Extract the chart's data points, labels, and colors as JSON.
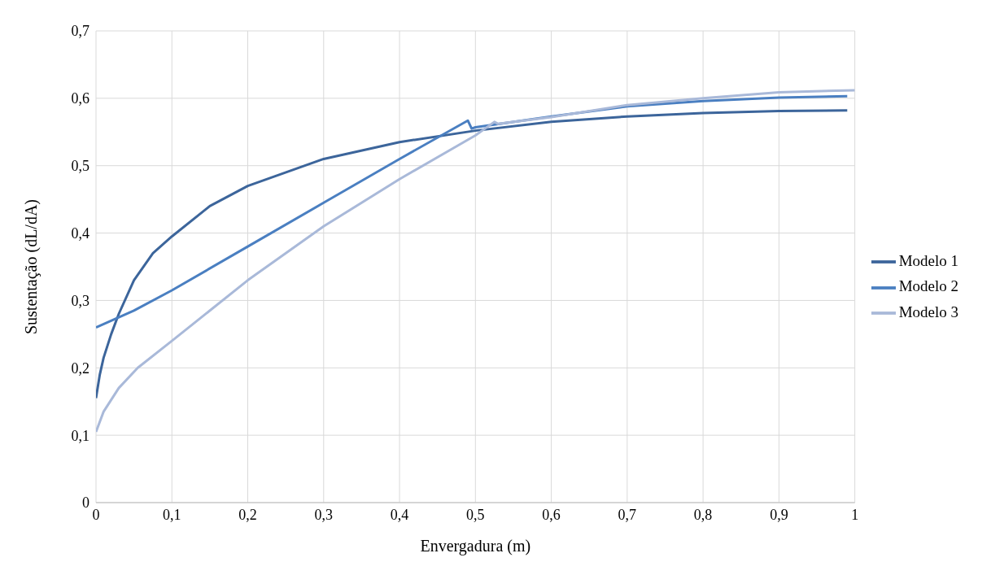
{
  "chart_data": {
    "type": "line",
    "xlabel": "Envergadura (m)",
    "ylabel": "Sustentação (dL/dA)",
    "xlim": [
      0,
      1
    ],
    "ylim": [
      0,
      0.7
    ],
    "xticks": [
      0,
      {
        "value": 0.1,
        "label": "0,1"
      },
      {
        "value": 0.2,
        "label": "0,2"
      },
      {
        "value": 0.3,
        "label": "0,3"
      },
      {
        "value": 0.4,
        "label": "0,4"
      },
      {
        "value": 0.5,
        "label": "0,5"
      },
      {
        "value": 0.6,
        "label": "0,6"
      },
      {
        "value": 0.7,
        "label": "0,7"
      },
      {
        "value": 0.8,
        "label": "0,8"
      },
      {
        "value": 0.9,
        "label": "0,9"
      },
      1
    ],
    "yticks": [
      0,
      {
        "value": 0.1,
        "label": "0,1"
      },
      {
        "value": 0.2,
        "label": "0,2"
      },
      {
        "value": 0.3,
        "label": "0,3"
      },
      {
        "value": 0.4,
        "label": "0,4"
      },
      {
        "value": 0.5,
        "label": "0,5"
      },
      {
        "value": 0.6,
        "label": "0,6"
      },
      {
        "value": 0.7,
        "label": "0,7"
      }
    ],
    "grid": true,
    "legend": "right",
    "marker": "none",
    "line_style": "solid",
    "series": [
      {
        "name": "Modelo 1",
        "color": "#3c659b",
        "x": [
          0,
          0.005,
          0.01,
          0.02,
          0.03,
          0.05,
          0.075,
          0.1,
          0.15,
          0.2,
          0.3,
          0.4,
          0.5,
          0.6,
          0.7,
          0.8,
          0.9,
          0.99
        ],
        "values": [
          0.155,
          0.19,
          0.215,
          0.25,
          0.28,
          0.33,
          0.37,
          0.395,
          0.44,
          0.47,
          0.51,
          0.535,
          0.552,
          0.565,
          0.573,
          0.578,
          0.581,
          0.582
        ]
      },
      {
        "name": "Modelo 2",
        "color": "#4a7fc1",
        "x": [
          0,
          0.05,
          0.1,
          0.2,
          0.3,
          0.4,
          0.49,
          0.495,
          0.5,
          0.6,
          0.7,
          0.8,
          0.9,
          0.99
        ],
        "values": [
          0.26,
          0.285,
          0.315,
          0.38,
          0.445,
          0.51,
          0.567,
          0.555,
          0.557,
          0.573,
          0.588,
          0.596,
          0.601,
          0.603
        ]
      },
      {
        "name": "Modelo 3",
        "color": "#a9b9d9",
        "x": [
          0,
          0.01,
          0.03,
          0.055,
          0.1,
          0.2,
          0.3,
          0.4,
          0.5,
          0.525,
          0.53,
          0.6,
          0.7,
          0.8,
          0.9,
          1.0
        ],
        "values": [
          0.105,
          0.135,
          0.17,
          0.2,
          0.24,
          0.33,
          0.41,
          0.48,
          0.545,
          0.565,
          0.562,
          0.572,
          0.59,
          0.6,
          0.609,
          0.612
        ]
      }
    ]
  }
}
